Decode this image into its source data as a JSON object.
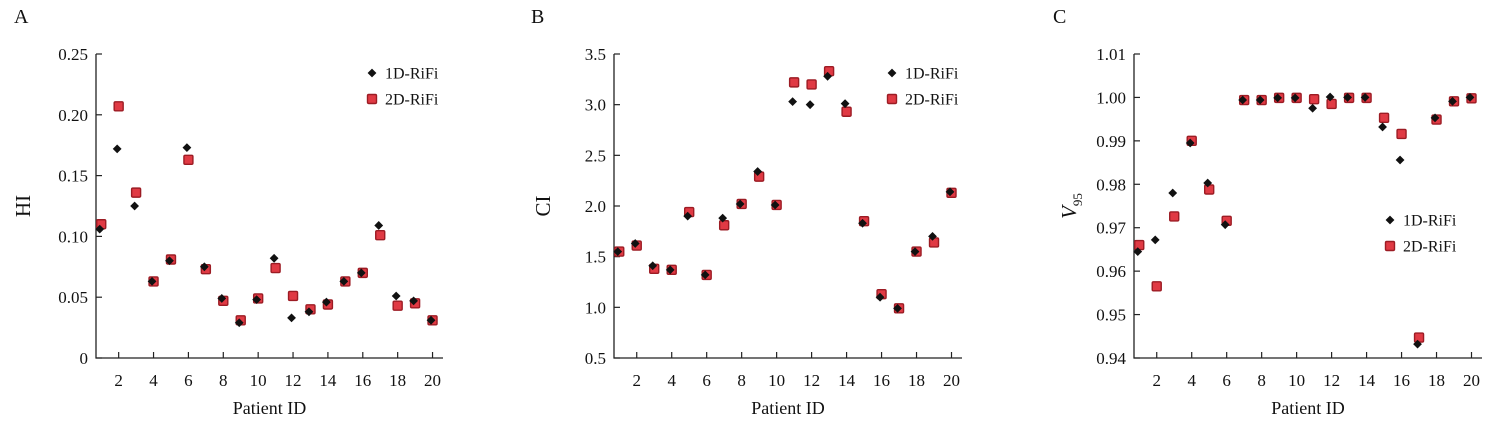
{
  "figure": {
    "panels": [
      "A",
      "B",
      "C"
    ]
  },
  "chart_data": [
    {
      "type": "scatter",
      "panel": "A",
      "xlabel": "Patient ID",
      "ylabel": "HI",
      "xlim": [
        0.7,
        20.6
      ],
      "ylim": [
        0,
        0.25
      ],
      "xticks": [
        2,
        4,
        6,
        8,
        10,
        12,
        14,
        16,
        18,
        20
      ],
      "xtick_labels": [
        "2",
        "4",
        "6",
        "8",
        "10",
        "12",
        "14",
        "16",
        "18",
        "20"
      ],
      "yticks": [
        0,
        0.05,
        0.1,
        0.15,
        0.2,
        0.25
      ],
      "ytick_labels": [
        "0",
        "0.05",
        "0.10",
        "0.15",
        "0.20",
        "0.25"
      ],
      "legend_position": "top-right",
      "x": [
        1,
        2,
        3,
        4,
        5,
        6,
        7,
        8,
        9,
        10,
        11,
        12,
        13,
        14,
        15,
        16,
        17,
        18,
        19,
        20
      ],
      "series": [
        {
          "name": "1D-RiFi",
          "marker": "diamond",
          "color": "#111111",
          "values": [
            0.106,
            0.172,
            0.125,
            0.063,
            0.08,
            0.173,
            0.075,
            0.049,
            0.029,
            0.048,
            0.082,
            0.033,
            0.038,
            0.046,
            0.063,
            0.07,
            0.109,
            0.051,
            0.047,
            0.031
          ]
        },
        {
          "name": "2D-RiFi",
          "marker": "square",
          "color": "#e03a44",
          "values": [
            0.11,
            0.207,
            0.136,
            0.063,
            0.081,
            0.163,
            0.073,
            0.047,
            0.031,
            0.049,
            0.074,
            0.051,
            0.04,
            0.044,
            0.063,
            0.07,
            0.101,
            0.043,
            0.045,
            0.031
          ]
        }
      ]
    },
    {
      "type": "scatter",
      "panel": "B",
      "xlabel": "Patient ID",
      "ylabel": "CI",
      "xlim": [
        0.7,
        20.6
      ],
      "ylim": [
        0.5,
        3.5
      ],
      "xticks": [
        2,
        4,
        6,
        8,
        10,
        12,
        14,
        16,
        18,
        20
      ],
      "xtick_labels": [
        "2",
        "4",
        "6",
        "8",
        "10",
        "12",
        "14",
        "16",
        "18",
        "20"
      ],
      "yticks": [
        0.5,
        1.0,
        1.5,
        2.0,
        2.5,
        3.0,
        3.5
      ],
      "ytick_labels": [
        "0.5",
        "1.0",
        "1.5",
        "2.0",
        "2.5",
        "3.0",
        "3.5"
      ],
      "legend_position": "top-right",
      "x": [
        1,
        2,
        3,
        4,
        5,
        6,
        7,
        8,
        9,
        10,
        11,
        12,
        13,
        14,
        15,
        16,
        17,
        18,
        19,
        20
      ],
      "series": [
        {
          "name": "1D-RiFi",
          "marker": "diamond",
          "color": "#111111",
          "values": [
            1.55,
            1.63,
            1.41,
            1.37,
            1.9,
            1.32,
            1.88,
            2.02,
            2.34,
            2.01,
            3.03,
            3.0,
            3.28,
            3.01,
            1.83,
            1.1,
            0.99,
            1.55,
            1.7,
            2.14
          ]
        },
        {
          "name": "2D-RiFi",
          "marker": "square",
          "color": "#e03a44",
          "values": [
            1.55,
            1.61,
            1.38,
            1.37,
            1.94,
            1.32,
            1.81,
            2.02,
            2.29,
            2.01,
            3.22,
            3.2,
            3.33,
            2.93,
            1.85,
            1.13,
            0.99,
            1.55,
            1.64,
            2.13
          ]
        }
      ]
    },
    {
      "type": "scatter",
      "panel": "C",
      "xlabel": "Patient ID",
      "ylabel": "V",
      "ylabel_subscript": "95",
      "xlim": [
        0.7,
        20.6
      ],
      "ylim": [
        0.94,
        1.01
      ],
      "xticks": [
        2,
        4,
        6,
        8,
        10,
        12,
        14,
        16,
        18,
        20
      ],
      "xtick_labels": [
        "2",
        "4",
        "6",
        "8",
        "10",
        "12",
        "14",
        "16",
        "18",
        "20"
      ],
      "yticks": [
        0.94,
        0.95,
        0.96,
        0.97,
        0.98,
        0.99,
        1.0,
        1.01
      ],
      "ytick_labels": [
        "0.94",
        "0.95",
        "0.96",
        "0.97",
        "0.98",
        "0.99",
        "1.00",
        "1.01"
      ],
      "legend_position": "center-right",
      "x": [
        1,
        2,
        3,
        4,
        5,
        6,
        7,
        8,
        9,
        10,
        11,
        12,
        13,
        14,
        15,
        16,
        17,
        18,
        19,
        20
      ],
      "series": [
        {
          "name": "1D-RiFi",
          "marker": "diamond",
          "color": "#111111",
          "values": [
            0.9645,
            0.9672,
            0.978,
            0.9895,
            0.9803,
            0.9707,
            0.9994,
            0.9994,
            0.9999,
            0.9999,
            0.9975,
            1.0001,
            1.0,
            1.0,
            0.9932,
            0.9856,
            0.9432,
            0.9953,
            0.9991,
            1.0
          ]
        },
        {
          "name": "2D-RiFi",
          "marker": "square",
          "color": "#e03a44",
          "values": [
            0.966,
            0.9565,
            0.9726,
            0.99,
            0.9788,
            0.9716,
            0.9994,
            0.9994,
            0.9999,
            0.9999,
            0.9996,
            0.9985,
            0.9999,
            0.9999,
            0.9953,
            0.9916,
            0.9447,
            0.9949,
            0.9991,
            0.9998
          ]
        }
      ]
    }
  ]
}
